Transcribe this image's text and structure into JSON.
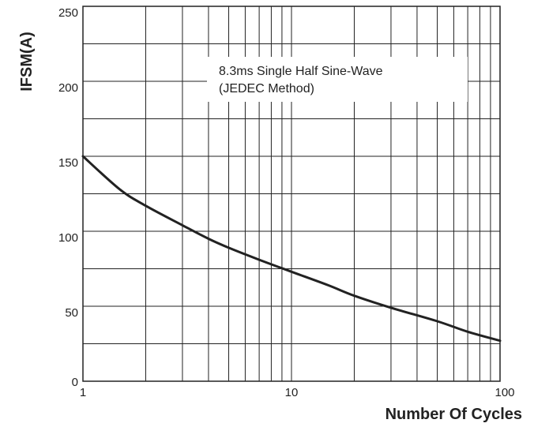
{
  "chart_data": {
    "type": "line",
    "xlabel": "Number Of Cycles",
    "ylabel": "IFSM(A)",
    "x_scale": "log",
    "xlim": [
      1,
      100
    ],
    "ylim": [
      0,
      250
    ],
    "x_ticks": [
      "1",
      "10",
      "100"
    ],
    "y_ticks": [
      "0",
      "50",
      "100",
      "150",
      "200",
      "250"
    ],
    "grid": true,
    "annotation": [
      "8.3ms Single Half Sine-Wave",
      "(JEDEC Method)"
    ],
    "series": [
      {
        "color": "#222222",
        "x": [
          1,
          1.5,
          2,
          3,
          4,
          5,
          7,
          10,
          15,
          20,
          30,
          50,
          70,
          100
        ],
        "y": [
          150,
          128,
          117,
          104,
          95,
          89,
          81,
          73,
          64,
          57,
          49,
          40,
          33,
          27
        ]
      }
    ]
  }
}
